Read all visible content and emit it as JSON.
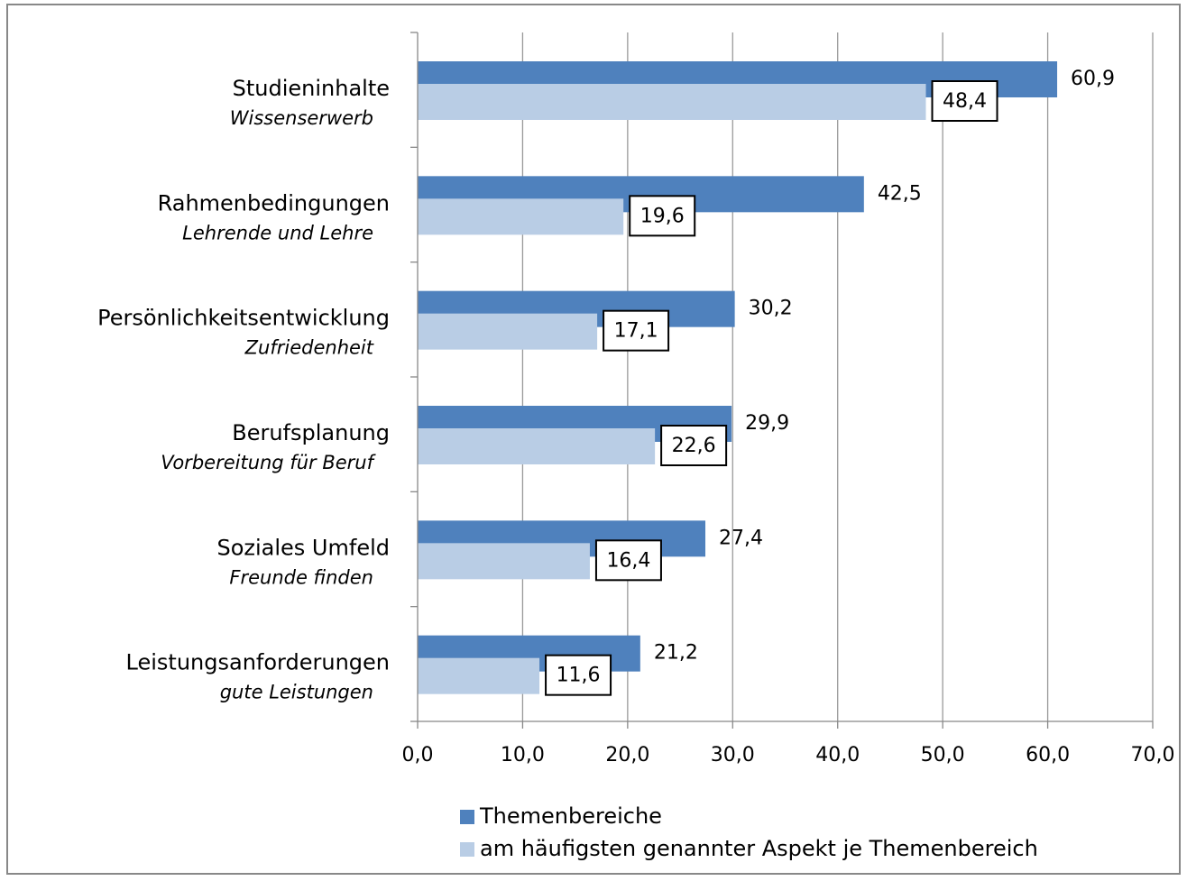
{
  "chart_data": {
    "type": "bar",
    "orientation": "horizontal",
    "categories": [
      "Studieninhalte",
      "Rahmenbedingungen",
      "Persönlichkeitsentwicklung",
      "Berufsplanung",
      "Soziales Umfeld",
      "Leistungsanforderungen"
    ],
    "category_sublabels": [
      "Wissenserwerb",
      "Lehrende und Lehre",
      "Zufriedenheit",
      "Vorbereitung für Beruf",
      "Freunde finden",
      "gute Leistungen"
    ],
    "series": [
      {
        "name": "Themenbereiche",
        "color": "#4f81bd",
        "values": [
          60.9,
          42.5,
          30.2,
          29.9,
          27.4,
          21.2
        ],
        "value_labels": [
          "60,9",
          "42,5",
          "30,2",
          "29,9",
          "27,4",
          "21,2"
        ]
      },
      {
        "name": "am häufigsten genannter Aspekt je Themenbereich",
        "color": "#b9cde5",
        "values": [
          48.4,
          19.6,
          17.1,
          22.6,
          16.4,
          11.6
        ],
        "value_labels": [
          "48,4",
          "19,6",
          "17,1",
          "22,6",
          "16,4",
          "11,6"
        ]
      }
    ],
    "xlim": [
      0,
      70
    ],
    "xticks": [
      {
        "value": 0,
        "label": "0,0"
      },
      {
        "value": 10,
        "label": "10,0"
      },
      {
        "value": 20,
        "label": "20,0"
      },
      {
        "value": 30,
        "label": "30,0"
      },
      {
        "value": 40,
        "label": "40,0"
      },
      {
        "value": 50,
        "label": "50,0"
      },
      {
        "value": 60,
        "label": "60,0"
      },
      {
        "value": 70,
        "label": "70,0"
      }
    ],
    "grid": true,
    "legend": "bottom"
  }
}
